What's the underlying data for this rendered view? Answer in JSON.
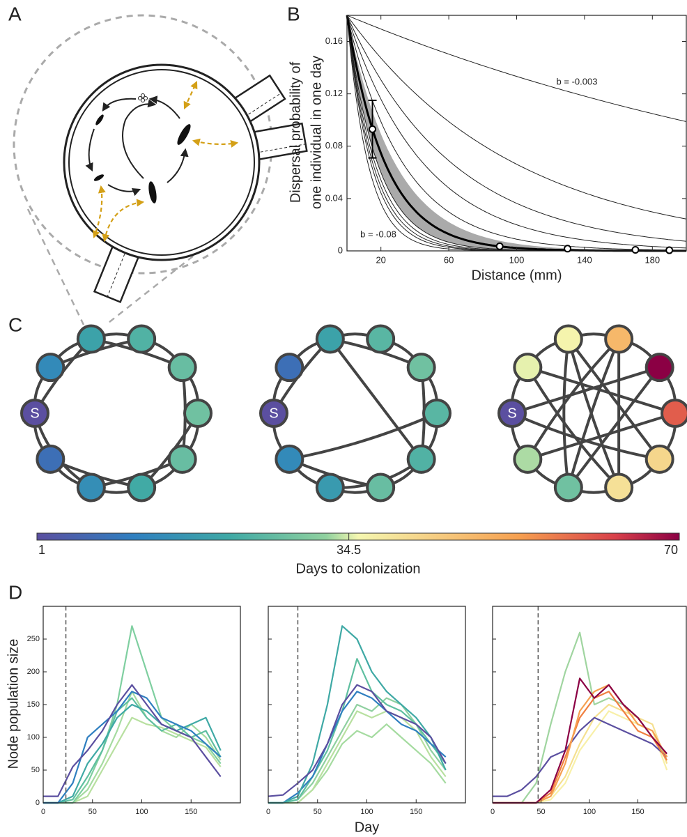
{
  "panel_labels": [
    "A",
    "B",
    "C",
    "D"
  ],
  "chart_data": [
    {
      "type": "function",
      "ylabel": [
        "Dispersal probability of",
        "one individual in one day"
      ],
      "xlabel": "Distance (mm)",
      "xlim": [
        0,
        200
      ],
      "ylim": [
        0,
        0.18
      ],
      "xticks": [
        20,
        60,
        100,
        140,
        180
      ],
      "yticks": [
        0,
        0.04,
        0.08,
        0.12,
        0.16
      ],
      "a": 0.18,
      "b": [
        -0.003,
        -0.01,
        -0.016,
        -0.022,
        -0.03,
        -0.055,
        -0.06,
        -0.065,
        -0.07,
        -0.08
      ],
      "b_fit": -0.044,
      "band": [
        -0.035,
        -0.055
      ],
      "x": [
        15,
        90,
        130,
        170,
        190
      ],
      "values": [
        0.093,
        0.0035,
        0.0017,
        0.0008,
        0.0005
      ],
      "errors": [
        0.022,
        null,
        null,
        null,
        null
      ],
      "annotations": [
        "b = -0.003",
        "b = -0.08"
      ]
    },
    {
      "type": "line",
      "ylabel": "Node population size",
      "xlim": [
        0,
        200
      ],
      "ylim": [
        0,
        300
      ],
      "xticks": [
        0,
        50,
        100,
        150
      ],
      "yticks": [
        0,
        50,
        100,
        150,
        200,
        250
      ],
      "show_yticklabels": true,
      "vline": 23,
      "x": [
        0,
        15,
        30,
        45,
        60,
        75,
        90,
        105,
        120,
        135,
        150,
        165,
        180
      ],
      "series": [
        {
          "color": "#b8e0a0",
          "values": [
            0,
            0,
            0,
            10,
            50,
            90,
            130,
            120,
            115,
            105,
            95,
            85,
            55
          ]
        },
        {
          "color": "#a5dba0",
          "values": [
            0,
            0,
            0,
            20,
            60,
            110,
            170,
            130,
            110,
            100,
            120,
            100,
            65
          ]
        },
        {
          "color": "#7fcfa0",
          "values": [
            0,
            0,
            0,
            30,
            80,
            150,
            270,
            200,
            130,
            110,
            100,
            90,
            60
          ]
        },
        {
          "color": "#5fbfa0",
          "values": [
            0,
            0,
            5,
            40,
            80,
            140,
            160,
            130,
            110,
            120,
            100,
            110,
            70
          ]
        },
        {
          "color": "#3fa9a5",
          "values": [
            0,
            0,
            10,
            60,
            90,
            130,
            150,
            140,
            120,
            110,
            120,
            130,
            80
          ]
        },
        {
          "color": "#2f7fc0",
          "values": [
            0,
            0,
            30,
            100,
            120,
            140,
            170,
            160,
            130,
            120,
            110,
            90,
            70
          ]
        },
        {
          "color": "#5b4fa0",
          "values": [
            10,
            10,
            55,
            80,
            110,
            150,
            180,
            150,
            120,
            110,
            100,
            70,
            40
          ]
        }
      ]
    },
    {
      "type": "line",
      "xlabel": "Day",
      "xlim": [
        0,
        200
      ],
      "ylim": [
        0,
        300
      ],
      "xticks": [
        0,
        50,
        100,
        150
      ],
      "yticks": [
        0,
        50,
        100,
        150,
        200,
        250
      ],
      "show_yticklabels": false,
      "vline": 30,
      "x": [
        0,
        15,
        30,
        45,
        60,
        75,
        90,
        105,
        120,
        135,
        150,
        165,
        180
      ],
      "series": [
        {
          "color": "#a5dba0",
          "values": [
            0,
            0,
            0,
            20,
            50,
            90,
            110,
            100,
            120,
            100,
            80,
            60,
            30
          ]
        },
        {
          "color": "#b8e0a0",
          "values": [
            0,
            0,
            0,
            20,
            60,
            100,
            140,
            130,
            140,
            130,
            110,
            70,
            40
          ]
        },
        {
          "color": "#8fd0a0",
          "values": [
            0,
            0,
            5,
            30,
            70,
            110,
            150,
            140,
            160,
            150,
            120,
            80,
            50
          ]
        },
        {
          "color": "#5fbfa0",
          "values": [
            0,
            0,
            5,
            40,
            80,
            140,
            220,
            170,
            150,
            140,
            120,
            90,
            60
          ]
        },
        {
          "color": "#2f7fc0",
          "values": [
            0,
            0,
            15,
            40,
            90,
            140,
            170,
            160,
            140,
            120,
            110,
            90,
            70
          ]
        },
        {
          "color": "#3fa9a5",
          "values": [
            0,
            0,
            10,
            60,
            150,
            270,
            250,
            200,
            170,
            150,
            130,
            100,
            50
          ]
        },
        {
          "color": "#5b4fa0",
          "values": [
            10,
            12,
            30,
            50,
            90,
            150,
            180,
            170,
            140,
            130,
            120,
            100,
            60
          ]
        }
      ]
    },
    {
      "type": "line",
      "xlim": [
        0,
        200
      ],
      "ylim": [
        0,
        300
      ],
      "xticks": [
        0,
        50,
        100,
        150
      ],
      "yticks": [
        0,
        50,
        100,
        150,
        200,
        250
      ],
      "show_yticklabels": false,
      "vline": 47,
      "x": [
        0,
        15,
        30,
        45,
        60,
        75,
        90,
        105,
        120,
        135,
        150,
        165,
        180
      ],
      "series": [
        {
          "color": "#f8f0a8",
          "values": [
            0,
            0,
            0,
            0,
            5,
            30,
            80,
            110,
            140,
            130,
            120,
            110,
            50
          ]
        },
        {
          "color": "#f5e090",
          "values": [
            0,
            0,
            0,
            0,
            10,
            40,
            90,
            130,
            150,
            140,
            130,
            120,
            60
          ]
        },
        {
          "color": "#a0d5a0",
          "values": [
            0,
            0,
            0,
            30,
            120,
            200,
            260,
            150,
            160,
            150,
            130,
            100,
            70
          ]
        },
        {
          "color": "#5b4fa0",
          "values": [
            10,
            10,
            20,
            40,
            70,
            80,
            110,
            130,
            120,
            110,
            100,
            90,
            70
          ]
        },
        {
          "color": "#f08040",
          "values": [
            0,
            0,
            0,
            0,
            15,
            70,
            130,
            160,
            170,
            140,
            110,
            100,
            65
          ]
        },
        {
          "color": "#f6a050",
          "values": [
            0,
            0,
            0,
            0,
            10,
            60,
            140,
            170,
            180,
            150,
            120,
            110,
            70
          ]
        },
        {
          "color": "#8b0044",
          "values": [
            0,
            0,
            0,
            0,
            20,
            80,
            190,
            160,
            180,
            150,
            130,
            100,
            75
          ]
        }
      ]
    }
  ],
  "source_label": "S",
  "networks": [
    {
      "days": [
        1,
        14,
        20,
        24,
        27,
        28,
        27,
        22,
        15,
        8
      ]
    },
    {
      "days": [
        1,
        8,
        20,
        25,
        28,
        25,
        24,
        27,
        18,
        14
      ]
    },
    {
      "days": [
        1,
        35,
        36,
        48,
        70,
        60,
        42,
        40,
        28,
        33
      ]
    }
  ],
  "colorbar": {
    "label": "Days to colonization",
    "clim": [
      1,
      70
    ],
    "ticks": [
      1,
      34.5,
      70
    ]
  }
}
